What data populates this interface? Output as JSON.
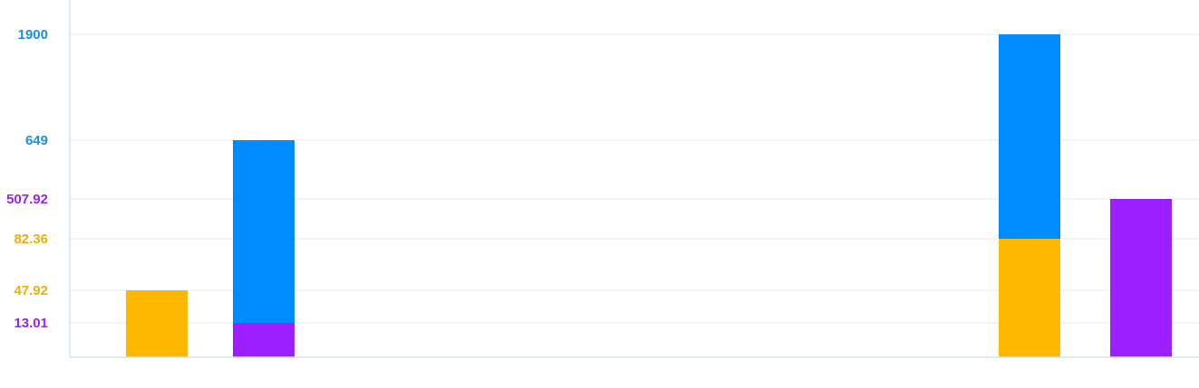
{
  "chart_data": {
    "type": "bar",
    "layout": "stacked",
    "grid": true,
    "legend": "none",
    "title": "",
    "xlabel": "",
    "ylabel": "",
    "y_ticks": [
      {
        "label": "1900",
        "color": "#1a8fe6"
      },
      {
        "label": "649",
        "color": "#1a8fe6"
      },
      {
        "label": "507.92",
        "color": "#9b22e6"
      },
      {
        "label": "82.36",
        "color": "#f0b000"
      },
      {
        "label": "47.92",
        "color": "#f0b000"
      },
      {
        "label": "13.01",
        "color": "#9b22e6"
      }
    ],
    "groups": [
      {
        "bars": [
          {
            "segments": [
              {
                "value": 47.92,
                "color": "#ffb800"
              }
            ]
          },
          {
            "segments": [
              {
                "value": 13.01,
                "color": "#9b1fff"
              },
              {
                "value": 649,
                "color": "#008cff"
              }
            ]
          }
        ]
      },
      {
        "bars": [
          {
            "segments": [
              {
                "value": 82.36,
                "color": "#ffb800"
              },
              {
                "value": 1900,
                "color": "#008cff"
              }
            ]
          },
          {
            "segments": [
              {
                "value": 507.92,
                "color": "#9b1fff"
              }
            ]
          }
        ]
      }
    ]
  },
  "colors": {
    "grid": "#dcecf4",
    "axis": "#cfe3f0"
  }
}
